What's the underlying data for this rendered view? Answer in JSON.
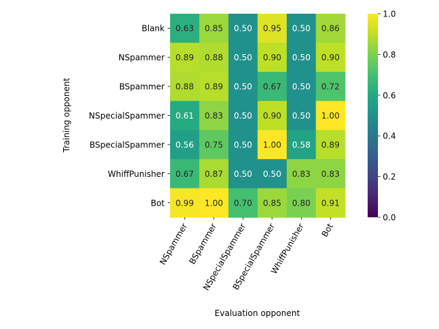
{
  "chart_data": {
    "type": "heatmap",
    "title": "",
    "xlabel": "Evaluation opponent",
    "ylabel": "Training opponent",
    "x_categories": [
      "NSpammer",
      "BSpammer",
      "NSpecialSpammer",
      "BSpecialSpammer",
      "WhiffPunisher",
      "Bot"
    ],
    "y_categories": [
      "Blank",
      "NSpammer",
      "BSpammer",
      "NSpecialSpammer",
      "BSpecialSpammer",
      "WhiffPunisher",
      "Bot"
    ],
    "values": [
      [
        0.63,
        0.85,
        0.5,
        0.95,
        0.5,
        0.86
      ],
      [
        0.89,
        0.88,
        0.5,
        0.9,
        0.5,
        0.9
      ],
      [
        0.88,
        0.89,
        0.5,
        0.67,
        0.5,
        0.72
      ],
      [
        0.61,
        0.83,
        0.5,
        0.9,
        0.5,
        1.0
      ],
      [
        0.56,
        0.75,
        0.5,
        1.0,
        0.58,
        0.89
      ],
      [
        0.67,
        0.87,
        0.5,
        0.5,
        0.83,
        0.83
      ],
      [
        0.99,
        1.0,
        0.7,
        0.85,
        0.8,
        0.91
      ]
    ],
    "value_format": "0.00",
    "colormap": "viridis",
    "colorbar": {
      "range": [
        0.0,
        1.0
      ],
      "ticks": [
        "0.0",
        "0.2",
        "0.4",
        "0.6",
        "0.8",
        "1.0"
      ]
    },
    "x_tick_rotation_deg": 60
  }
}
